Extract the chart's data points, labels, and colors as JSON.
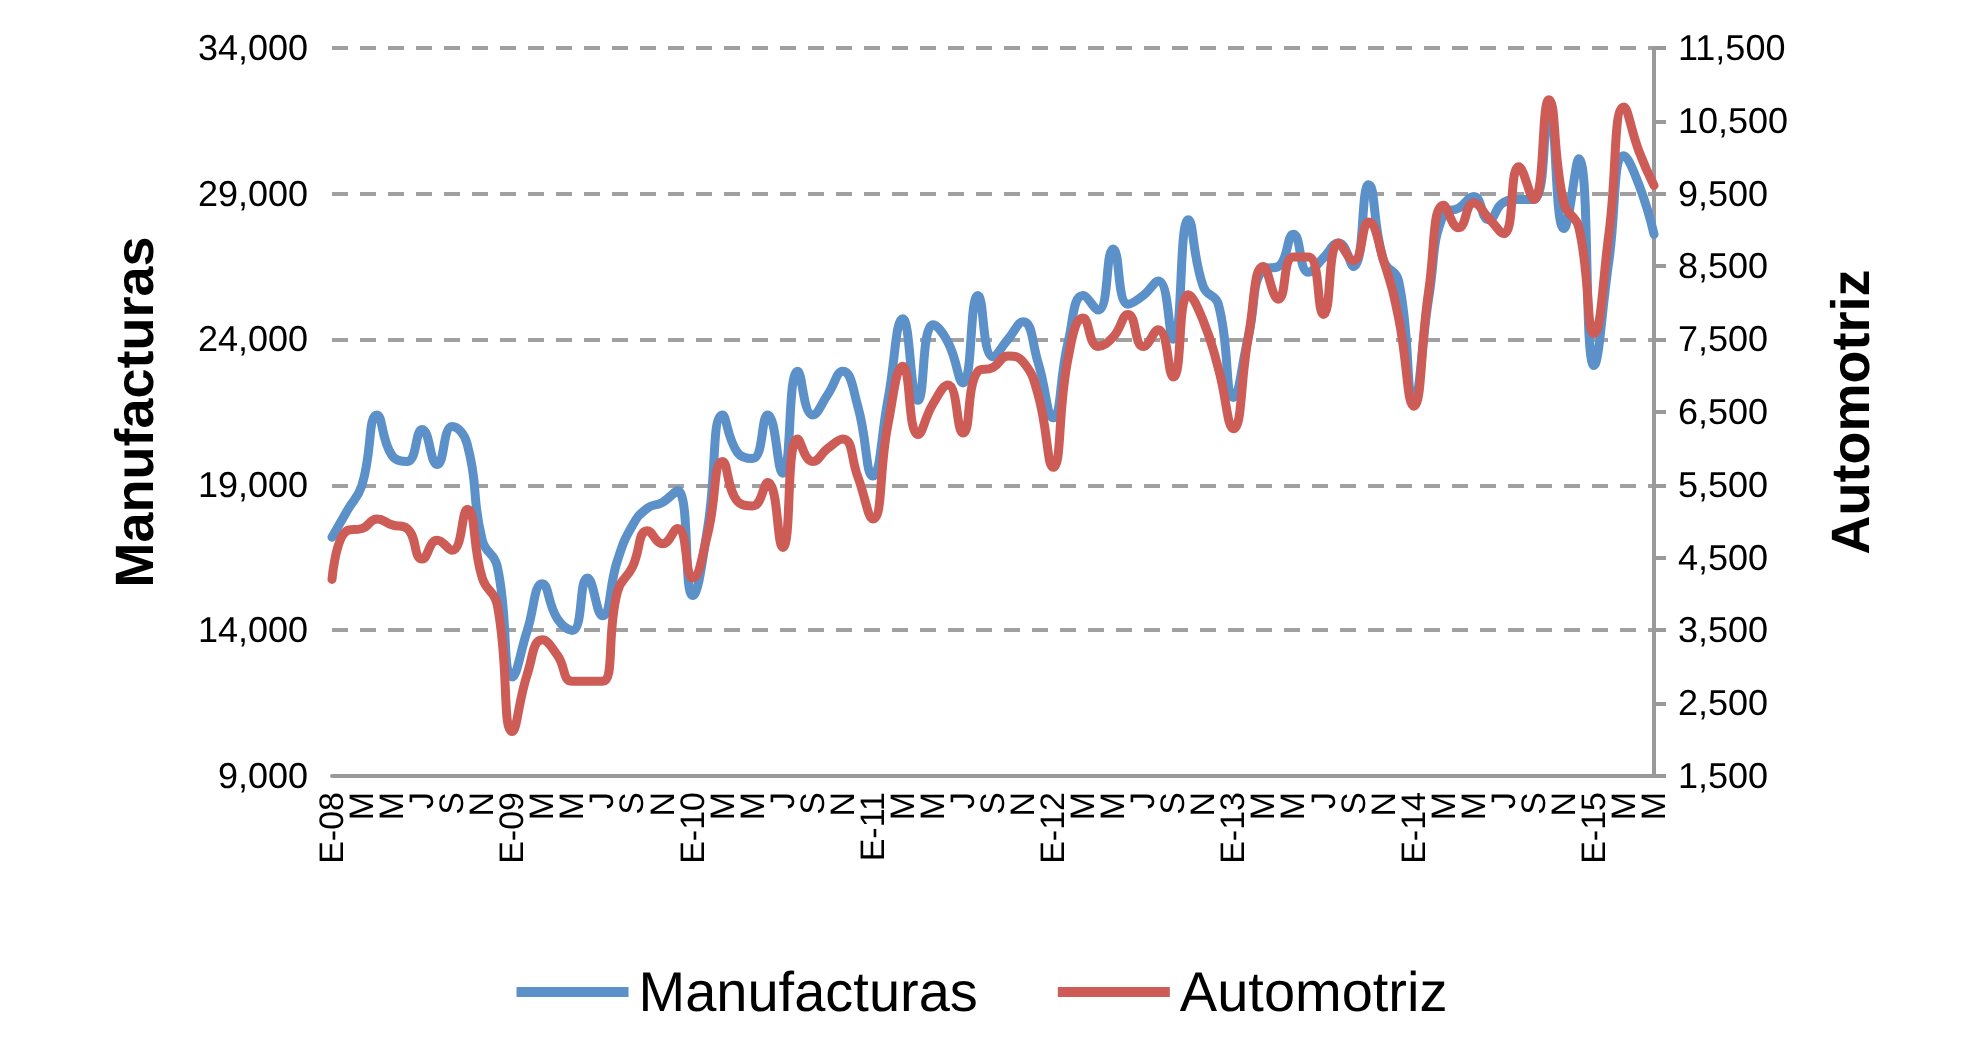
{
  "chart_data": {
    "type": "line",
    "ylabel": "Manufacturas",
    "y2label": "Automotriz",
    "categories": [
      "E-08",
      null,
      "M",
      null,
      "M",
      null,
      "J",
      null,
      "S",
      null,
      "N",
      null,
      "E-09",
      null,
      "M",
      null,
      "M",
      null,
      "J",
      null,
      "S",
      null,
      "N",
      null,
      "E-10",
      null,
      "M",
      null,
      "M",
      null,
      "J",
      null,
      "S",
      null,
      "N",
      null,
      "E-11",
      null,
      "M",
      null,
      "M",
      null,
      "J",
      null,
      "S",
      null,
      "N",
      null,
      "E-12",
      null,
      "M",
      null,
      "M",
      null,
      "J",
      null,
      "S",
      null,
      "N",
      null,
      "E-13",
      null,
      "M",
      null,
      "M",
      null,
      "J",
      null,
      "S",
      null,
      "N",
      null,
      "E-14",
      null,
      "M",
      null,
      "M",
      null,
      "J",
      null,
      "S",
      null,
      "N",
      null,
      "E-15",
      null,
      "M",
      null,
      "M"
    ],
    "series": [
      {
        "name": "Manufacturas",
        "color": "#5b90c8",
        "values": [
          17200,
          18100,
          19000,
          21400,
          20000,
          19800,
          20900,
          19700,
          21000,
          20400,
          17100,
          16200,
          12400,
          14000,
          15600,
          14400,
          14000,
          15800,
          14500,
          16400,
          17600,
          18200,
          18400,
          18800,
          15200,
          17500,
          21400,
          20100,
          19900,
          21400,
          19400,
          22900,
          21400,
          22100,
          22900,
          21700,
          19300,
          21900,
          24700,
          21900,
          24500,
          23900,
          22500,
          25500,
          23400,
          24000,
          24600,
          23200,
          21300,
          23900,
          25500,
          25000,
          27100,
          25200,
          25500,
          26000,
          24000,
          28100,
          25800,
          25200,
          22000,
          24100,
          26400,
          26500,
          27600,
          26300,
          26800,
          27300,
          26500,
          29300,
          26700,
          26000,
          21900,
          25400,
          28300,
          28500,
          28900,
          28100,
          28700,
          28800,
          28800,
          31800,
          27800,
          30200,
          23100,
          26700,
          30300,
          29300,
          27600
        ]
      },
      {
        "name": "Automotriz",
        "color": "#cc5c55",
        "axis": "y2",
        "values": [
          4200,
          4870,
          4900,
          5030,
          4950,
          4900,
          4480,
          4740,
          4600,
          5160,
          4220,
          3850,
          2110,
          2900,
          3370,
          3160,
          2800,
          2800,
          2800,
          4030,
          4370,
          4870,
          4690,
          4900,
          4220,
          4820,
          5820,
          5270,
          5210,
          5530,
          4640,
          6130,
          5820,
          6000,
          6130,
          5610,
          5030,
          6320,
          7130,
          6190,
          6610,
          6870,
          6210,
          7060,
          7110,
          7270,
          7190,
          6740,
          5740,
          7240,
          7790,
          7400,
          7530,
          7840,
          7400,
          7630,
          6980,
          8110,
          7750,
          7100,
          6270,
          7530,
          8500,
          8050,
          8630,
          8630,
          7840,
          8820,
          8580,
          9110,
          8580,
          7790,
          6580,
          8160,
          9340,
          9030,
          9370,
          9160,
          8950,
          9870,
          9420,
          10790,
          9370,
          9030,
          7580,
          8950,
          10690,
          10080,
          9610
        ]
      }
    ],
    "ylim": [
      9000,
      34000
    ],
    "yticks": [
      {
        "value": 9000,
        "label": "9,000"
      },
      {
        "value": 14000,
        "label": "14,000"
      },
      {
        "value": 19000,
        "label": "19,000"
      },
      {
        "value": 24000,
        "label": "24,000"
      },
      {
        "value": 29000,
        "label": "29,000"
      },
      {
        "value": 34000,
        "label": "34,000"
      }
    ],
    "y2lim": [
      1500,
      11500
    ],
    "y2ticks": [
      {
        "value": 1500,
        "label": "1,500"
      },
      {
        "value": 2500,
        "label": "2,500"
      },
      {
        "value": 3500,
        "label": "3,500"
      },
      {
        "value": 4500,
        "label": "4,500"
      },
      {
        "value": 5500,
        "label": "5,500"
      },
      {
        "value": 6500,
        "label": "6,500"
      },
      {
        "value": 7500,
        "label": "7,500"
      },
      {
        "value": 8500,
        "label": "8,500"
      },
      {
        "value": 9500,
        "label": "9,500"
      },
      {
        "value": 10500,
        "label": "10,500"
      },
      {
        "value": 11500,
        "label": "11,500"
      }
    ],
    "grid": "y",
    "legend": "bottom",
    "marker": "none",
    "line_style": "solid"
  }
}
